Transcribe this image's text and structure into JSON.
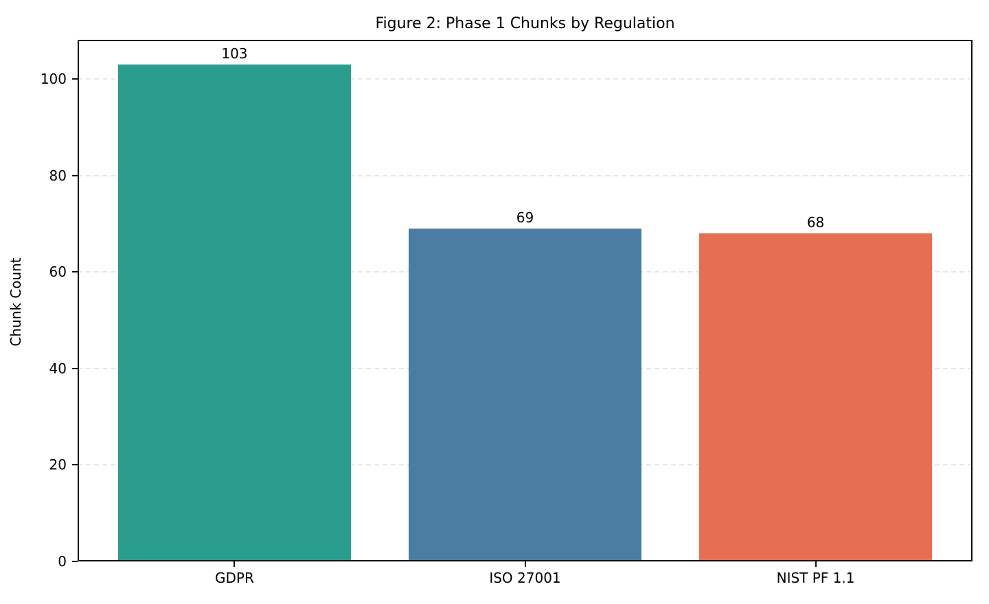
{
  "chart_data": {
    "type": "bar",
    "title": "Figure 2: Phase 1 Chunks by Regulation",
    "categories": [
      "GDPR",
      "ISO 27001",
      "NIST PF 1.1"
    ],
    "values": [
      103,
      69,
      68
    ],
    "bar_colors": [
      "#2a9d8f",
      "#4a7da1",
      "#e76f51"
    ],
    "value_labels": [
      "103",
      "69",
      "68"
    ],
    "xlabel": "",
    "ylabel": "Chunk Count",
    "yticks": [
      0,
      20,
      40,
      60,
      80,
      100
    ],
    "ylim": [
      0,
      108.15
    ],
    "xlim": [
      -0.54,
      2.54
    ],
    "bar_width_units": 0.8,
    "grid": "horizontal-dashed",
    "grid_color": "#e6e6e6",
    "spine_color": "#0f0f0f",
    "legend": "none",
    "background_color": "#ffffff"
  }
}
